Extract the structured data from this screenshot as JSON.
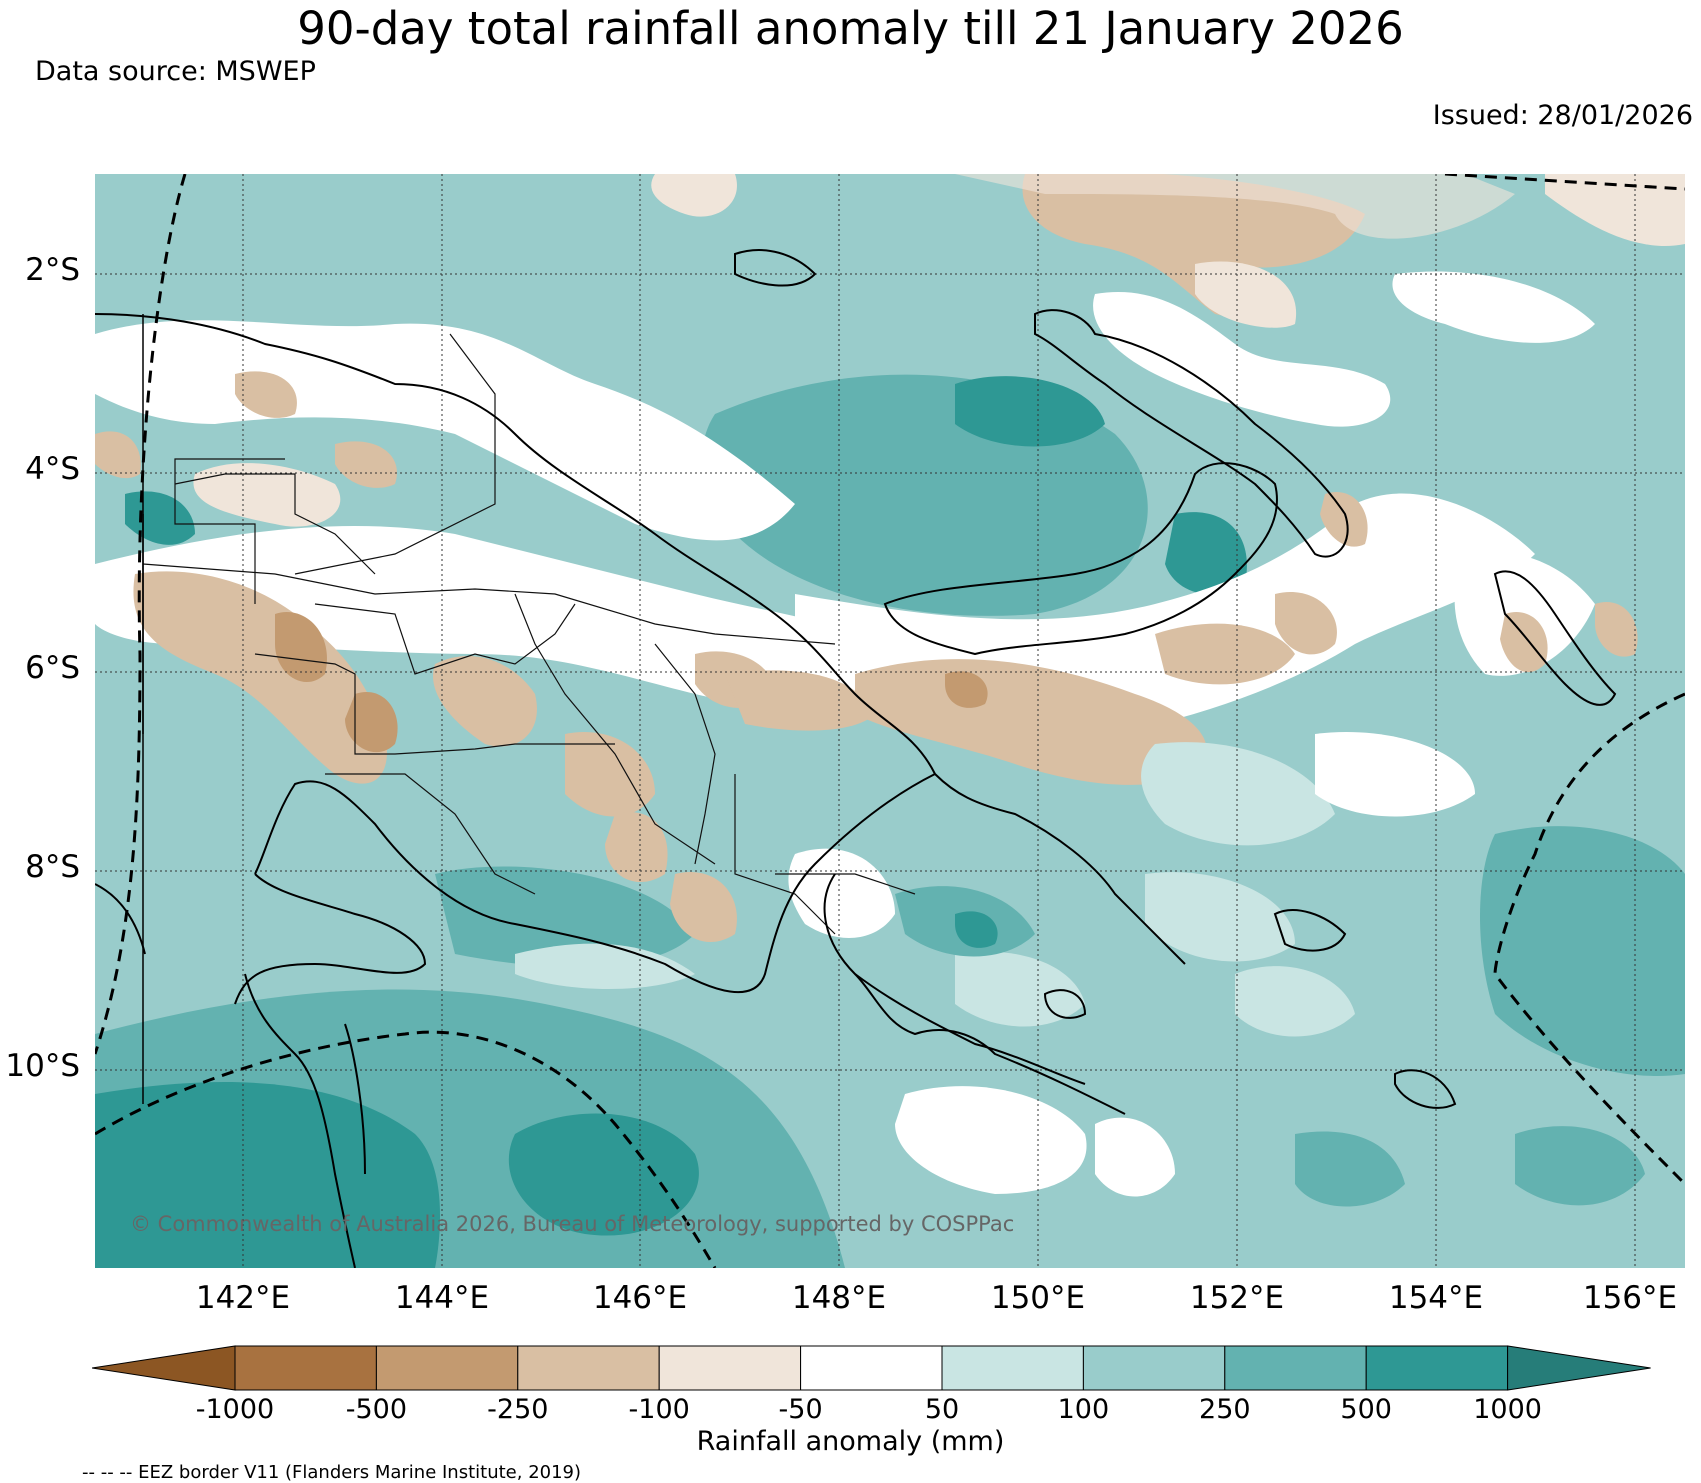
{
  "header": {
    "title": "90-day total rainfall anomaly till 21 January 2026",
    "source": "Data source: MSWEP",
    "issued": "Issued: 28/01/2026"
  },
  "map": {
    "lat_labels": [
      "2°S",
      "4°S",
      "6°S",
      "8°S",
      "10°S"
    ],
    "lon_labels": [
      "142°E",
      "144°E",
      "146°E",
      "148°E",
      "150°E",
      "152°E",
      "154°E",
      "156°E"
    ],
    "copyright": "© Commonwealth of Australia 2026, Bureau of Meteorology, supported by COSPPac",
    "eez_note": "-- -- -- EEZ border V11 (Flanders Marine Institute, 2019)"
  },
  "legend": {
    "label": "Rainfall anomaly (mm)",
    "ticks": [
      "-1000",
      "-500",
      "-250",
      "-100",
      "-50",
      "50",
      "100",
      "250",
      "500",
      "1000"
    ],
    "colors": [
      "#8c5623",
      "#a87240",
      "#c39a70",
      "#d9bfa3",
      "#f0e5da",
      "#ffffff",
      "#c9e5e3",
      "#99cccb",
      "#63b2b0",
      "#2e9894",
      "#267d79"
    ]
  }
}
